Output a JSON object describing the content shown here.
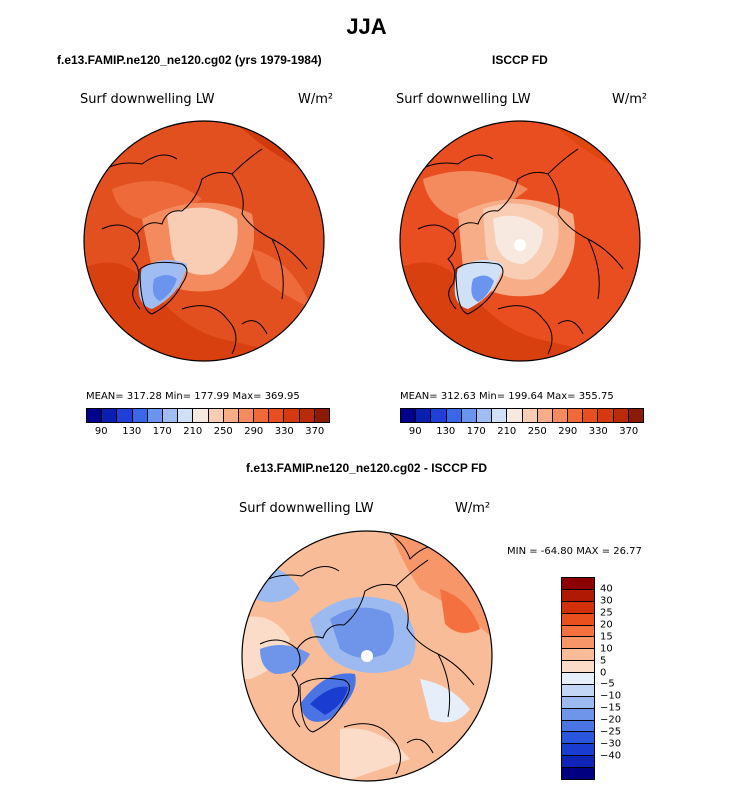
{
  "figure_title": "JJA",
  "panels": {
    "left": {
      "title": "f.e13.FAMIP.ne120_ne120.cg02 (yrs 1979-1984)",
      "variable": "Surf downwelling LW",
      "units": "W/m²",
      "stats": "MEAN= 317.28  Min= 177.99  Max= 369.95"
    },
    "right": {
      "title": "ISCCP FD",
      "variable": "Surf downwelling LW",
      "units": "W/m²",
      "stats": "MEAN= 312.63  Min= 199.64  Max= 355.75"
    },
    "diff": {
      "title": "f.e13.FAMIP.ne120_ne120.cg02 - ISCCP FD",
      "variable": "Surf downwelling LW",
      "units": "W/m²",
      "stats": "MIN = -64.80 MAX =  26.77"
    }
  },
  "colorbar_main": {
    "colors": [
      "#00008b",
      "#0a1fb0",
      "#1f3fd6",
      "#3a66e8",
      "#6a94ee",
      "#9fbdf2",
      "#cfe0f7",
      "#f7e8e0",
      "#f8cdb3",
      "#f6ad88",
      "#f38b5f",
      "#ef6a3a",
      "#e94e20",
      "#d6380f",
      "#b82a08",
      "#8b1a06"
    ],
    "tick_labels": [
      "90",
      "130",
      "170",
      "210",
      "250",
      "290",
      "330",
      "370"
    ]
  },
  "colorbar_diff": {
    "colors": [
      "#8b0000",
      "#b01a05",
      "#d2300a",
      "#ea4f1e",
      "#f4713f",
      "#f79668",
      "#f9bc98",
      "#fbdcc8",
      "#e6eefa",
      "#c4d6f6",
      "#9cbaf0",
      "#6f95ea",
      "#4a74e4",
      "#2a55dd",
      "#1a3cd0",
      "#0f23b4",
      "#000080"
    ],
    "tick_labels": [
      "40",
      "30",
      "25",
      "20",
      "15",
      "10",
      "5",
      "0",
      "−5",
      "−10",
      "−15",
      "−20",
      "−25",
      "−30",
      "−40"
    ]
  },
  "chart_data": [
    {
      "type": "heatmap",
      "title": "f.e13.FAMIP.ne120_ne120.cg02 (yrs 1979-1984)",
      "variable": "Surf downwelling LW",
      "units": "W/m2",
      "season": "JJA",
      "projection": "north polar stereographic",
      "mean": 317.28,
      "min": 177.99,
      "max": 369.95,
      "levels": [
        90,
        130,
        170,
        210,
        250,
        290,
        330,
        370
      ]
    },
    {
      "type": "heatmap",
      "title": "ISCCP FD",
      "variable": "Surf downwelling LW",
      "units": "W/m2",
      "season": "JJA",
      "projection": "north polar stereographic",
      "mean": 312.63,
      "min": 199.64,
      "max": 355.75,
      "levels": [
        90,
        130,
        170,
        210,
        250,
        290,
        330,
        370
      ]
    },
    {
      "type": "heatmap",
      "title": "f.e13.FAMIP.ne120_ne120.cg02 - ISCCP FD",
      "variable": "Surf downwelling LW",
      "units": "W/m2",
      "season": "JJA",
      "projection": "north polar stereographic",
      "min": -64.8,
      "max": 26.77,
      "levels": [
        -40,
        -30,
        -25,
        -20,
        -15,
        -10,
        -5,
        0,
        5,
        10,
        15,
        20,
        25,
        30,
        40
      ]
    }
  ]
}
